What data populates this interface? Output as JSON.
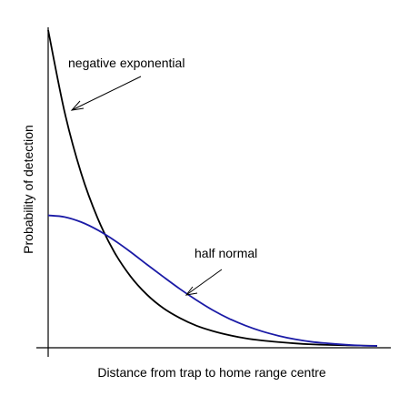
{
  "chart_data": {
    "type": "line",
    "title": "",
    "xlabel": "Distance from trap to home range centre",
    "ylabel": "Probability of detection",
    "xlim": [
      0,
      1
    ],
    "ylim": [
      0,
      1
    ],
    "grid": false,
    "legend": "none",
    "series": [
      {
        "name": "negative exponential",
        "color": "#000000",
        "x": [
          0,
          0.05,
          0.1,
          0.15,
          0.2,
          0.25,
          0.3,
          0.35,
          0.4,
          0.45,
          0.5,
          0.55,
          0.6,
          0.65,
          0.7,
          0.75,
          0.8,
          0.85,
          0.9,
          0.95,
          1
        ],
        "y": [
          1.0,
          0.741,
          0.549,
          0.407,
          0.301,
          0.223,
          0.165,
          0.122,
          0.091,
          0.067,
          0.05,
          0.037,
          0.027,
          0.02,
          0.015,
          0.011,
          0.008,
          0.006,
          0.005,
          0.004,
          0.003
        ]
      },
      {
        "name": "half normal",
        "color": "#1a1aa6",
        "x": [
          0,
          0.05,
          0.1,
          0.15,
          0.2,
          0.25,
          0.3,
          0.35,
          0.4,
          0.45,
          0.5,
          0.55,
          0.6,
          0.65,
          0.7,
          0.75,
          0.8,
          0.85,
          0.9,
          0.95,
          1
        ],
        "y": [
          0.415,
          0.41,
          0.394,
          0.369,
          0.337,
          0.3,
          0.26,
          0.221,
          0.183,
          0.148,
          0.116,
          0.089,
          0.067,
          0.049,
          0.035,
          0.024,
          0.016,
          0.011,
          0.007,
          0.004,
          0.003
        ]
      }
    ],
    "annotations": [
      {
        "text": "negative exponential",
        "series": 0
      },
      {
        "text": "half normal",
        "series": 1
      }
    ]
  }
}
